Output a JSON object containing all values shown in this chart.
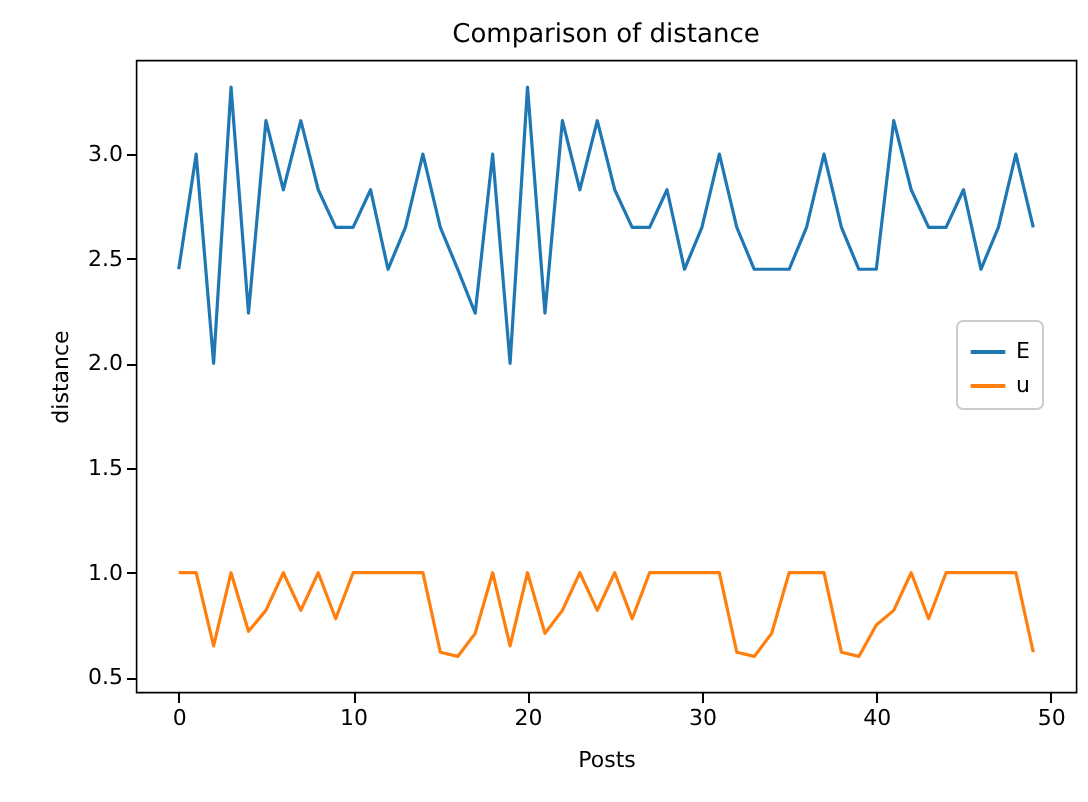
{
  "chart_data": {
    "type": "line",
    "title": "Comparison of distance",
    "xlabel": "Posts",
    "ylabel": "distance",
    "x": [
      0,
      1,
      2,
      3,
      4,
      5,
      6,
      7,
      8,
      9,
      10,
      11,
      12,
      13,
      14,
      15,
      16,
      17,
      18,
      19,
      20,
      21,
      22,
      23,
      24,
      25,
      26,
      27,
      28,
      29,
      30,
      31,
      32,
      33,
      34,
      35,
      36,
      37,
      38,
      39,
      40,
      41,
      42,
      43,
      44,
      45,
      46,
      47,
      48,
      49
    ],
    "series": [
      {
        "name": "E",
        "color": "#1f77b4",
        "values": [
          2.45,
          3.0,
          2.0,
          3.32,
          2.24,
          3.16,
          2.83,
          3.16,
          2.83,
          2.65,
          2.65,
          2.83,
          2.45,
          2.65,
          3.0,
          2.65,
          2.45,
          2.24,
          3.0,
          2.0,
          3.32,
          2.24,
          3.16,
          2.83,
          3.16,
          2.83,
          2.65,
          2.65,
          2.83,
          2.45,
          2.65,
          3.0,
          2.65,
          2.45,
          2.45,
          2.45,
          2.65,
          3.0,
          2.65,
          2.45,
          2.45,
          3.16,
          2.83,
          2.65,
          2.65,
          2.83,
          2.45,
          2.65,
          3.0,
          2.65
        ]
      },
      {
        "name": "u",
        "color": "#ff7f0e",
        "values": [
          1.0,
          1.0,
          0.65,
          1.0,
          0.72,
          0.82,
          1.0,
          0.82,
          1.0,
          0.78,
          1.0,
          1.0,
          1.0,
          1.0,
          1.0,
          0.62,
          0.6,
          0.71,
          1.0,
          0.65,
          1.0,
          0.71,
          0.82,
          1.0,
          0.82,
          1.0,
          0.78,
          1.0,
          1.0,
          1.0,
          1.0,
          1.0,
          0.62,
          0.6,
          0.71,
          1.0,
          1.0,
          1.0,
          0.62,
          0.6,
          0.75,
          0.82,
          1.0,
          0.78,
          1.0,
          1.0,
          1.0,
          1.0,
          1.0,
          0.62
        ]
      }
    ],
    "xlim": [
      -2.45,
      51.45
    ],
    "ylim": [
      0.43,
      3.45
    ],
    "xticks": [
      0,
      10,
      20,
      30,
      40,
      50
    ],
    "yticks": [
      0.5,
      {
        "value": 1,
        "label": "1.0"
      },
      1.5,
      {
        "value": 2,
        "label": "2.0"
      },
      2.5,
      {
        "value": 3,
        "label": "3.0"
      }
    ],
    "legend": "right",
    "grid": false
  }
}
